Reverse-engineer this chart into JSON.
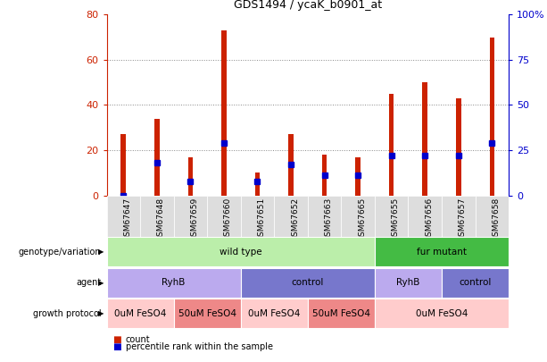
{
  "title": "GDS1494 / ycaK_b0901_at",
  "samples": [
    "GSM67647",
    "GSM67648",
    "GSM67659",
    "GSM67660",
    "GSM67651",
    "GSM67652",
    "GSM67663",
    "GSM67665",
    "GSM67655",
    "GSM67656",
    "GSM67657",
    "GSM67658"
  ],
  "counts": [
    27,
    34,
    17,
    73,
    10,
    27,
    18,
    17,
    45,
    50,
    43,
    70
  ],
  "percentile_ranks": [
    0,
    18,
    8,
    29,
    8,
    17,
    11,
    11,
    22,
    22,
    22,
    29
  ],
  "ylim_left": [
    0,
    80
  ],
  "ylim_right": [
    0,
    100
  ],
  "yticks_left": [
    0,
    20,
    40,
    60,
    80
  ],
  "yticks_right": [
    0,
    25,
    50,
    75,
    100
  ],
  "bar_color": "#cc2200",
  "dot_color": "#0000cc",
  "genotype_groups": [
    {
      "label": "wild type",
      "start": 0,
      "end": 8,
      "color": "#bbeeaa"
    },
    {
      "label": "fur mutant",
      "start": 8,
      "end": 12,
      "color": "#44bb44"
    }
  ],
  "agent_groups": [
    {
      "label": "RyhB",
      "start": 0,
      "end": 4,
      "color": "#bbaaee"
    },
    {
      "label": "control",
      "start": 4,
      "end": 8,
      "color": "#7777cc"
    },
    {
      "label": "RyhB",
      "start": 8,
      "end": 10,
      "color": "#bbaaee"
    },
    {
      "label": "control",
      "start": 10,
      "end": 12,
      "color": "#7777cc"
    }
  ],
  "growth_groups": [
    {
      "label": "0uM FeSO4",
      "start": 0,
      "end": 2,
      "color": "#ffcccc"
    },
    {
      "label": "50uM FeSO4",
      "start": 2,
      "end": 4,
      "color": "#ee8888"
    },
    {
      "label": "0uM FeSO4",
      "start": 4,
      "end": 6,
      "color": "#ffcccc"
    },
    {
      "label": "50uM FeSO4",
      "start": 6,
      "end": 8,
      "color": "#ee8888"
    },
    {
      "label": "0uM FeSO4",
      "start": 8,
      "end": 12,
      "color": "#ffcccc"
    }
  ],
  "legend_count_color": "#cc2200",
  "legend_pct_color": "#0000cc",
  "right_axis_color": "#0000cc",
  "left_axis_color": "#cc2200",
  "bg_color": "#ffffff",
  "xtick_bg": "#dddddd"
}
